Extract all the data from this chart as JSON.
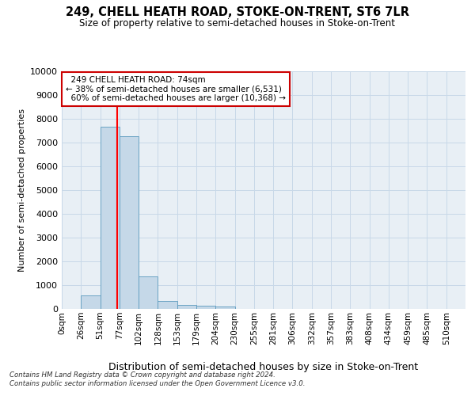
{
  "title": "249, CHELL HEATH ROAD, STOKE-ON-TRENT, ST6 7LR",
  "subtitle": "Size of property relative to semi-detached houses in Stoke-on-Trent",
  "xlabel": "Distribution of semi-detached houses by size in Stoke-on-Trent",
  "ylabel": "Number of semi-detached properties",
  "footnote1": "Contains HM Land Registry data © Crown copyright and database right 2024.",
  "footnote2": "Contains public sector information licensed under the Open Government Licence v3.0.",
  "bar_labels": [
    "0sqm",
    "26sqm",
    "51sqm",
    "77sqm",
    "102sqm",
    "128sqm",
    "153sqm",
    "179sqm",
    "204sqm",
    "230sqm",
    "255sqm",
    "281sqm",
    "306sqm",
    "332sqm",
    "357sqm",
    "383sqm",
    "408sqm",
    "434sqm",
    "459sqm",
    "485sqm",
    "510sqm"
  ],
  "bar_values": [
    0,
    580,
    7650,
    7250,
    1370,
    340,
    155,
    130,
    85,
    0,
    0,
    0,
    0,
    0,
    0,
    0,
    0,
    0,
    0,
    0,
    0
  ],
  "bar_color": "#c5d8e8",
  "bar_edge_color": "#5a9abe",
  "property_line_x": 74,
  "property_line_label": "249 CHELL HEATH ROAD: 74sqm",
  "pct_smaller": 38,
  "pct_larger": 60,
  "count_smaller": "6,531",
  "count_larger": "10,368",
  "ylim": [
    0,
    10000
  ],
  "yticks": [
    0,
    1000,
    2000,
    3000,
    4000,
    5000,
    6000,
    7000,
    8000,
    9000,
    10000
  ],
  "annotation_box_color": "#cc0000",
  "grid_color": "#c8d8e8",
  "bg_color": "#e8eff5"
}
